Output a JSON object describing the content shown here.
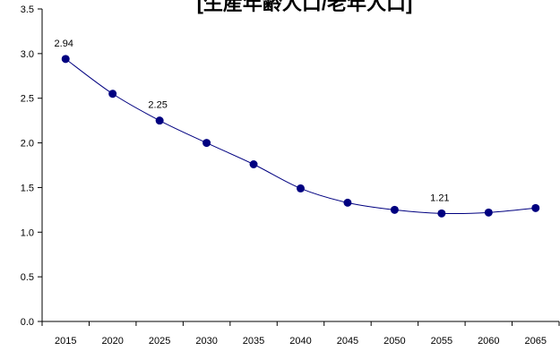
{
  "chart_data": {
    "type": "line",
    "title": "[生産年齢人口/老年人口]",
    "x": [
      "2015",
      "2020",
      "2025",
      "2030",
      "2035",
      "2040",
      "2045",
      "2050",
      "2055",
      "2060",
      "2065"
    ],
    "series": [
      {
        "values": [
          2.94,
          2.55,
          2.25,
          2.0,
          1.76,
          1.49,
          1.33,
          1.25,
          1.21,
          1.22,
          1.27
        ]
      }
    ],
    "ylim": [
      0,
      3.5
    ],
    "yticks": [
      "0.0",
      "0.5",
      "1.0",
      "1.5",
      "2.0",
      "2.5",
      "3.0",
      "3.5"
    ],
    "data_labels": [
      {
        "index": 0,
        "text": "2.94"
      },
      {
        "index": 2,
        "text": "2.25"
      },
      {
        "index": 8,
        "text": "1.21"
      }
    ],
    "grid": false,
    "legend": "none",
    "colors": {
      "series": "#000080",
      "axis": "#000000"
    }
  }
}
